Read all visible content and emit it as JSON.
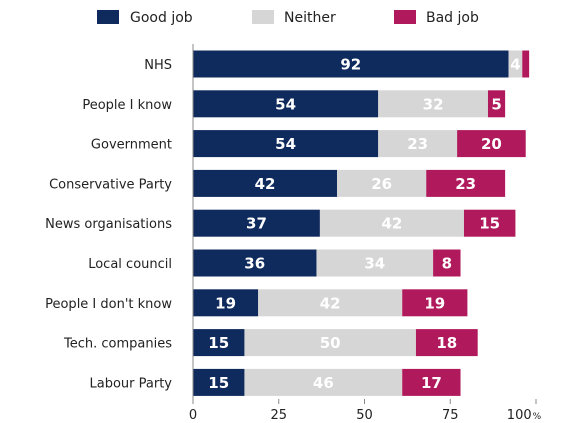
{
  "chart_data": {
    "type": "bar",
    "orientation": "horizontal",
    "stacked": true,
    "categories": [
      "NHS",
      "People I know",
      "Government",
      "Conservative Party",
      "News organisations",
      "Local council",
      "People I don't know",
      "Tech. companies",
      "Labour Party"
    ],
    "series": [
      {
        "name": "Good job",
        "color": "#0f2a5c",
        "values": [
          92,
          54,
          54,
          42,
          37,
          36,
          19,
          15,
          15
        ]
      },
      {
        "name": "Neither",
        "color": "#d6d6d6",
        "values": [
          4,
          32,
          23,
          26,
          42,
          34,
          42,
          50,
          46
        ]
      },
      {
        "name": "Bad job",
        "color": "#b01a5c",
        "values": [
          2,
          5,
          20,
          23,
          15,
          8,
          19,
          18,
          17
        ]
      }
    ],
    "data_labels": [
      [
        "92",
        "4",
        ""
      ],
      [
        "54",
        "32",
        "5"
      ],
      [
        "54",
        "23",
        "20"
      ],
      [
        "42",
        "26",
        "23"
      ],
      [
        "37",
        "42",
        "15"
      ],
      [
        "36",
        "34",
        "8"
      ],
      [
        "19",
        "42",
        "19"
      ],
      [
        "15",
        "50",
        "18"
      ],
      [
        "15",
        "46",
        "17"
      ]
    ],
    "x_ticks": [
      "0",
      "25",
      "50",
      "75",
      "100"
    ],
    "x_unit": "%",
    "xlim": [
      0,
      100
    ],
    "legend_position": "top",
    "grid": false
  }
}
